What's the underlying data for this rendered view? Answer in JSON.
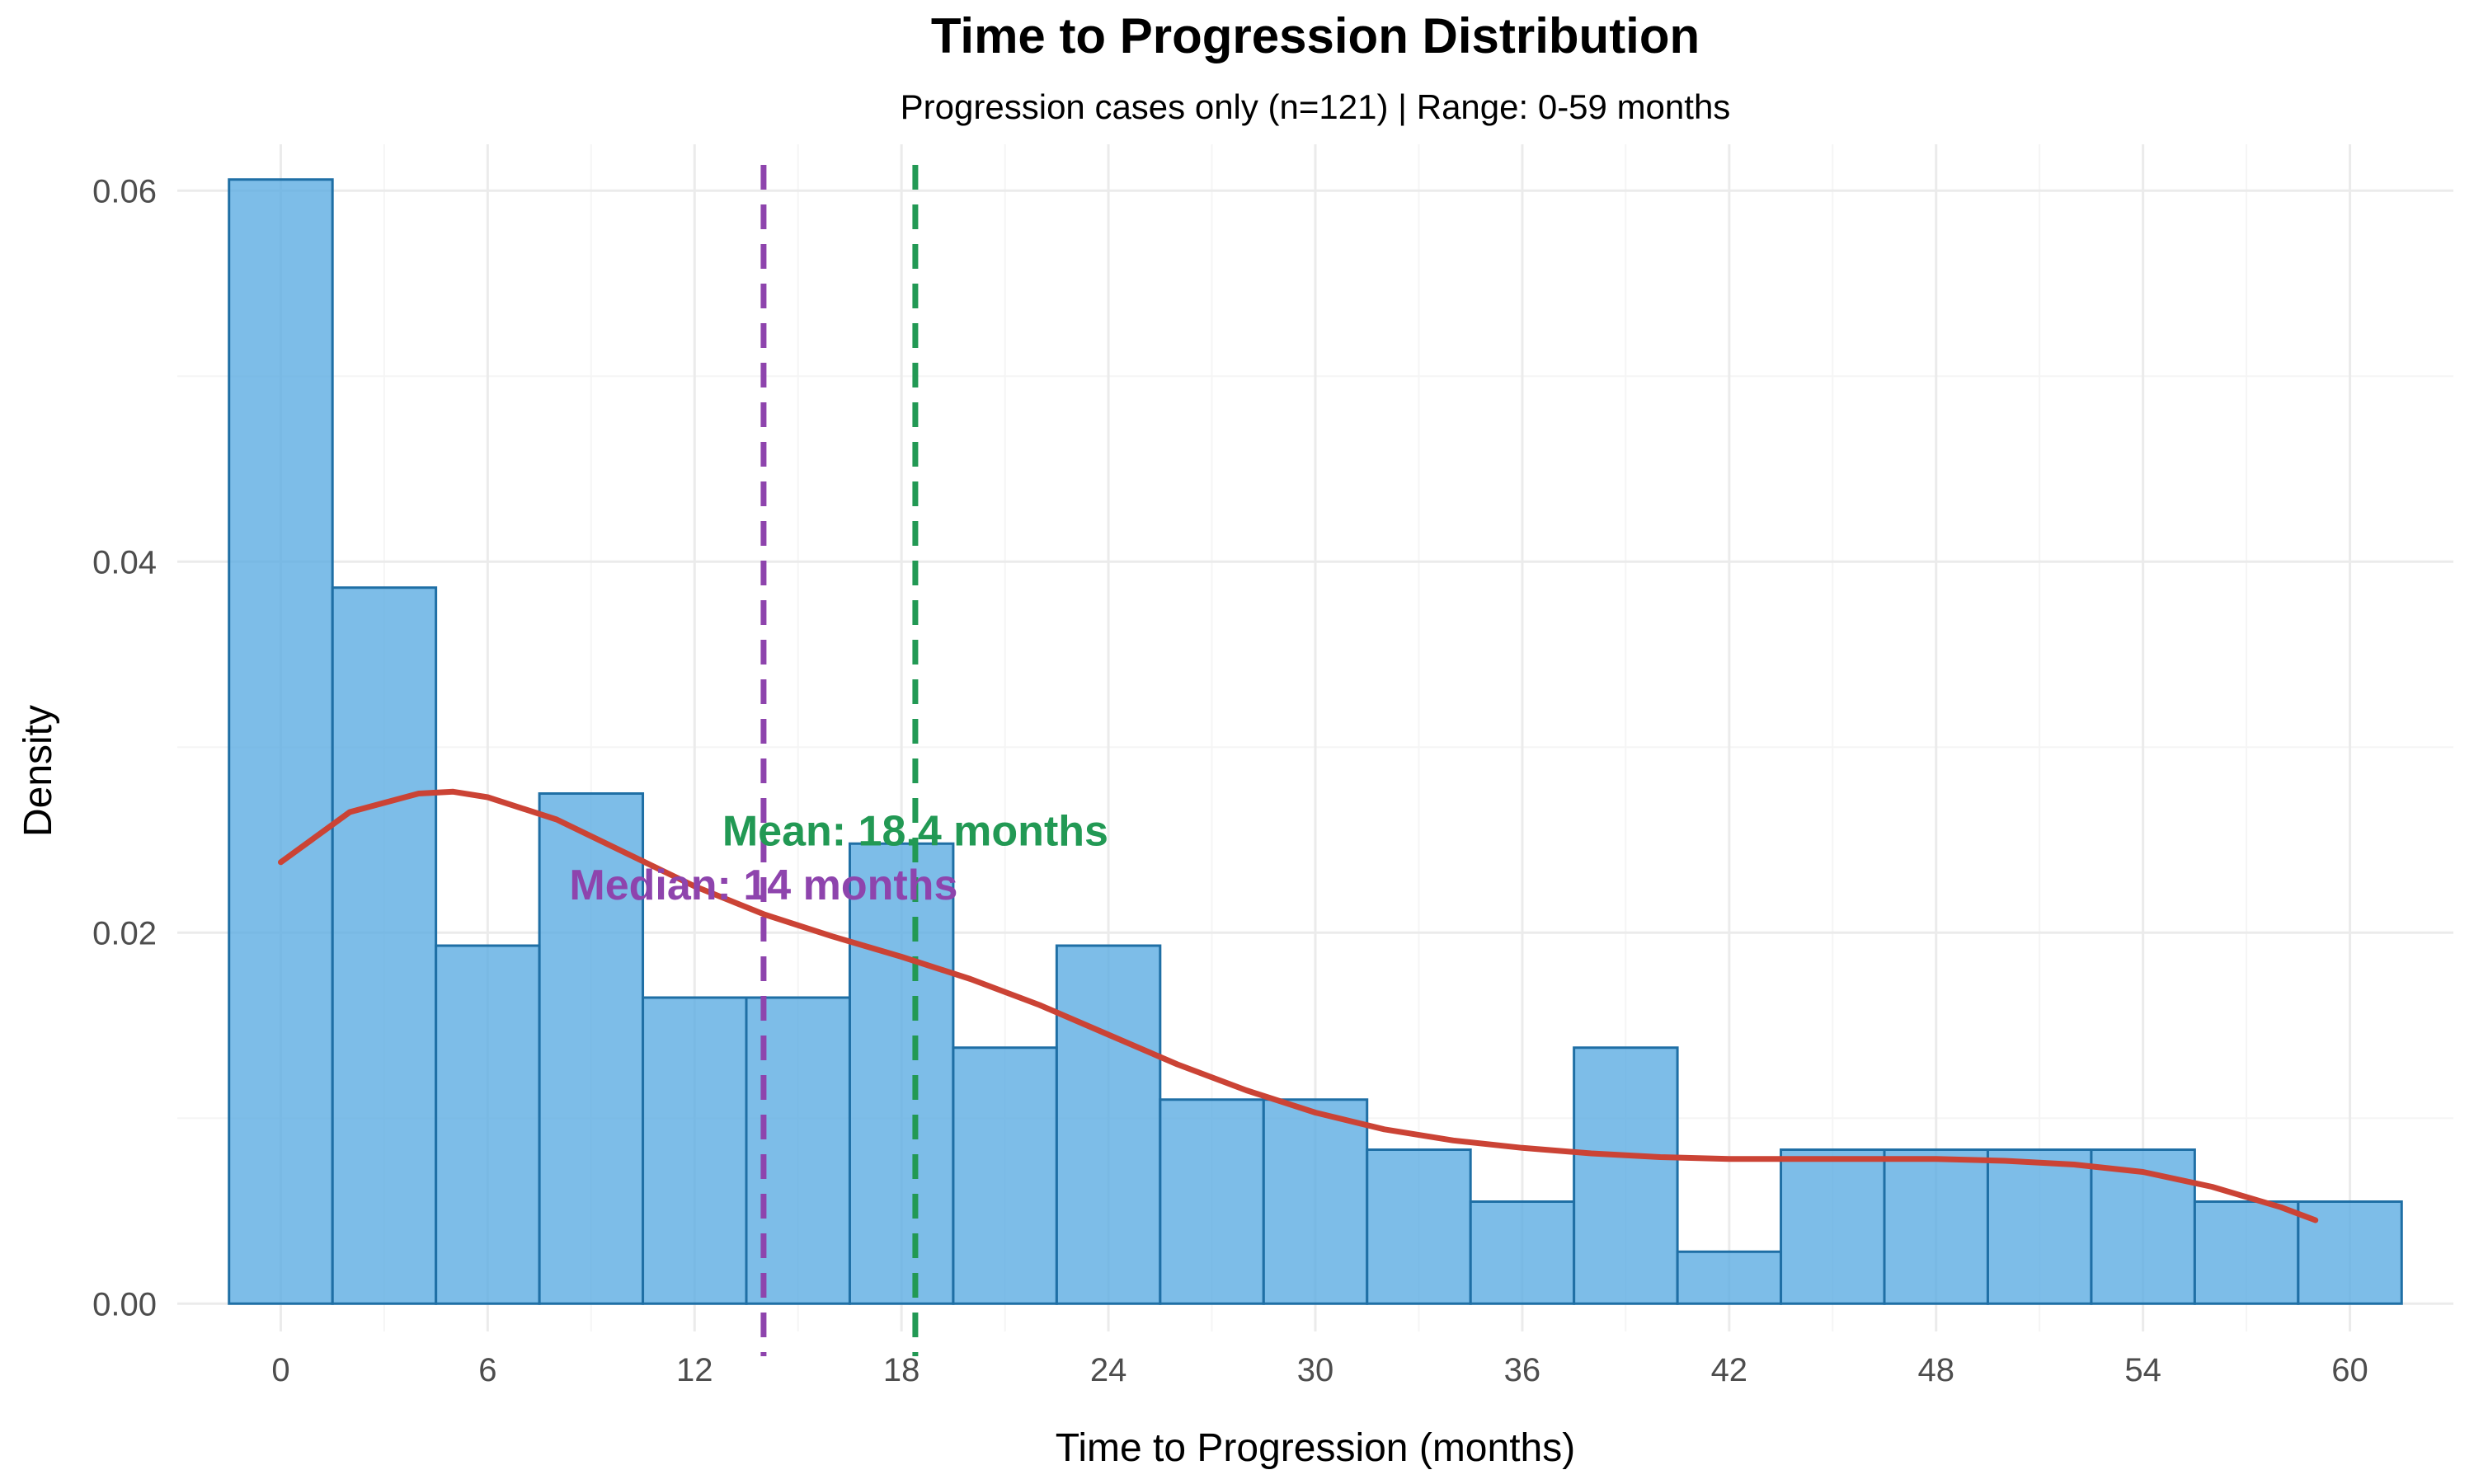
{
  "chart_data": {
    "type": "histogram",
    "title": "Time to Progression Distribution",
    "subtitle": "Progression cases only (n=121) | Range: 0-59 months",
    "xlabel": "Time to Progression (months)",
    "ylabel": "Density",
    "xlim": [
      -3,
      63
    ],
    "ylim": [
      -0.0015,
      0.0625
    ],
    "x_ticks": [
      0,
      6,
      12,
      18,
      24,
      30,
      36,
      42,
      48,
      54,
      60
    ],
    "x_tick_labels": [
      "0",
      "6",
      "12",
      "18",
      "24",
      "30",
      "36",
      "42",
      "48",
      "54",
      "60"
    ],
    "y_ticks": [
      0,
      0.02,
      0.04,
      0.06
    ],
    "y_tick_labels": [
      "0.00",
      "0.02",
      "0.04",
      "0.06"
    ],
    "grid": true,
    "bin_width": 3,
    "bins": [
      {
        "start": -1.5,
        "end": 1.5,
        "density": 0.0606
      },
      {
        "start": 1.5,
        "end": 4.5,
        "density": 0.0386
      },
      {
        "start": 4.5,
        "end": 7.5,
        "density": 0.0193
      },
      {
        "start": 7.5,
        "end": 10.5,
        "density": 0.0275
      },
      {
        "start": 10.5,
        "end": 13.5,
        "density": 0.0165
      },
      {
        "start": 13.5,
        "end": 16.5,
        "density": 0.0165
      },
      {
        "start": 16.5,
        "end": 19.5,
        "density": 0.0248
      },
      {
        "start": 19.5,
        "end": 22.5,
        "density": 0.0138
      },
      {
        "start": 22.5,
        "end": 25.5,
        "density": 0.0193
      },
      {
        "start": 25.5,
        "end": 28.5,
        "density": 0.011
      },
      {
        "start": 28.5,
        "end": 31.5,
        "density": 0.011
      },
      {
        "start": 31.5,
        "end": 34.5,
        "density": 0.0083
      },
      {
        "start": 34.5,
        "end": 37.5,
        "density": 0.0055
      },
      {
        "start": 37.5,
        "end": 40.5,
        "density": 0.0138
      },
      {
        "start": 40.5,
        "end": 43.5,
        "density": 0.0028
      },
      {
        "start": 43.5,
        "end": 46.5,
        "density": 0.0083
      },
      {
        "start": 46.5,
        "end": 49.5,
        "density": 0.0083
      },
      {
        "start": 49.5,
        "end": 52.5,
        "density": 0.0083
      },
      {
        "start": 52.5,
        "end": 55.5,
        "density": 0.0083
      },
      {
        "start": 55.5,
        "end": 58.5,
        "density": 0.0055
      },
      {
        "start": 58.5,
        "end": 61.5,
        "density": 0.0055
      }
    ],
    "density_curve": {
      "x": [
        0,
        2,
        4,
        5,
        6,
        8,
        10,
        12,
        14,
        16,
        18,
        20,
        22,
        24,
        26,
        28,
        30,
        32,
        34,
        36,
        38,
        40,
        42,
        44,
        46,
        48,
        50,
        52,
        54,
        56,
        58,
        59
      ],
      "y": [
        0.0238,
        0.0265,
        0.0275,
        0.0276,
        0.0273,
        0.0261,
        0.0243,
        0.0225,
        0.021,
        0.0198,
        0.0187,
        0.0175,
        0.0161,
        0.0145,
        0.0129,
        0.0115,
        0.0103,
        0.0094,
        0.0088,
        0.0084,
        0.0081,
        0.0079,
        0.0078,
        0.0078,
        0.0078,
        0.0078,
        0.0077,
        0.0075,
        0.0071,
        0.0063,
        0.0052,
        0.0045
      ]
    },
    "reference_lines": [
      {
        "name": "median",
        "x": 14,
        "label": "Median: 14 months",
        "label_y": 0.0218,
        "label_x": 14
      },
      {
        "name": "mean",
        "x": 18.4,
        "label": "Mean: 18.4 months",
        "label_y": 0.0247,
        "label_x": 18.4
      }
    ],
    "colors": {
      "bar_fill": "#5dade2",
      "bar_stroke": "#1f6fa5",
      "density_line": "#cb4335",
      "median": "#8e44ad",
      "mean": "#229954",
      "grid_major": "#ebebeb",
      "grid_minor": "#f5f5f5"
    }
  }
}
